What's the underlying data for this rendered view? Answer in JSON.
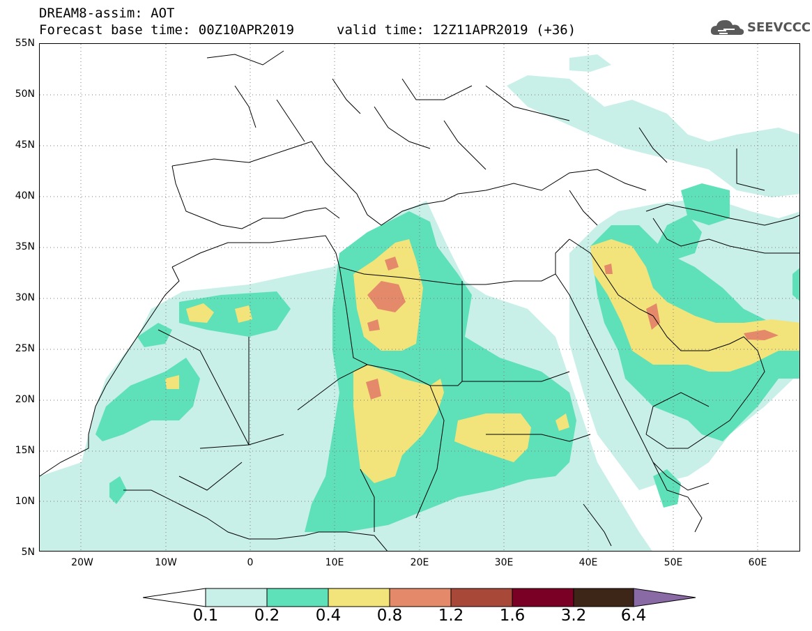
{
  "header": {
    "title_line_1": "DREAM8-assim: AOT",
    "title_line_2": "Forecast base time: 00Z10APR2019",
    "valid_time": "valid time: 12Z11APR2019 (+36)",
    "logo_text": "SEEVCCC",
    "logo_icon": "cloud-icon"
  },
  "map": {
    "lat_labels": [
      "55N",
      "50N",
      "45N",
      "40N",
      "35N",
      "30N",
      "25N",
      "20N",
      "15N",
      "10N",
      "5N"
    ],
    "lon_labels": [
      "20W",
      "10W",
      "0",
      "10E",
      "20E",
      "30E",
      "40E",
      "50E",
      "60E"
    ],
    "lon_range": [
      -25,
      65
    ],
    "lat_range": [
      5,
      55
    ]
  },
  "colorbar": {
    "labels": [
      "0.1",
      "0.2",
      "0.4",
      "0.8",
      "1.2",
      "1.6",
      "3.2",
      "6.4"
    ],
    "colors": {
      "below": "#ffffff",
      "c1": "#c8f0e8",
      "c2": "#5ee0b8",
      "c3": "#f2e47a",
      "c4": "#e48a6a",
      "c5": "#a84838",
      "c6": "#7a0025",
      "c7": "#3d2517",
      "above": "#8a6aa4"
    }
  }
}
